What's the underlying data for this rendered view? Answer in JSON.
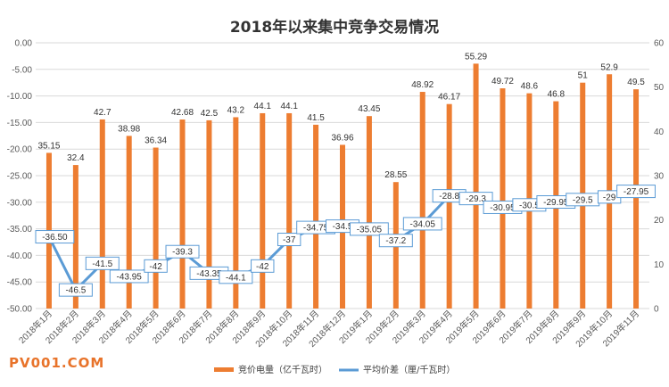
{
  "watermark_text": "PV001.COM",
  "chart_data": {
    "type": "bar+line",
    "title": "2018年以来集中竞争交易情况",
    "categories": [
      "2018年1月",
      "2018年2月",
      "2018年3月",
      "2018年4月",
      "2018年5月",
      "2018年6月",
      "2018年7月",
      "2018年8月",
      "2018年9月",
      "2018年10月",
      "2018年11月",
      "2018年12月",
      "2019年1月",
      "2019年2月",
      "2019年3月",
      "2019年4月",
      "2019年5月",
      "2019年6月",
      "2019年7月",
      "2019年8月",
      "2019年9月",
      "2019年10月",
      "2019年11月"
    ],
    "series": [
      {
        "name": "竞价电量（亿千瓦时）",
        "type": "bar",
        "axis": "right",
        "values": [
          35.15,
          32.4,
          42.7,
          38.98,
          36.34,
          42.68,
          42.5,
          43.2,
          44.1,
          44.1,
          41.5,
          36.96,
          43.45,
          28.55,
          48.92,
          46.17,
          55.29,
          49.72,
          48.6,
          46.8,
          51,
          52.9,
          49.5
        ],
        "labels": [
          "35.15",
          "32.4",
          "42.7",
          "38.98",
          "36.34",
          "42.68",
          "42.5",
          "43.2",
          "44.1",
          "44.1",
          "41.5",
          "36.96",
          "43.45",
          "28.55",
          "48.92",
          "46.17",
          "55.29",
          "49.72",
          "48.6",
          "46.8",
          "51",
          "52.9",
          "49.5"
        ],
        "color": "#ed7d31"
      },
      {
        "name": "平均价差（厘/千瓦时）",
        "type": "line",
        "axis": "left",
        "values": [
          -36.5,
          -46.5,
          -41.5,
          -43.95,
          -42,
          -39.3,
          -43.35,
          -44.1,
          -42,
          -37,
          -34.75,
          -34.5,
          -35.05,
          -37.2,
          -34.05,
          -28.8,
          -29.3,
          -30.95,
          -30.5,
          -29.95,
          -29.5,
          -29,
          -27.95
        ],
        "labels": [
          "-36.50",
          "-46.5",
          "-41.5",
          "-43.95",
          "-42",
          "-39.3",
          "-43.35",
          "-44.1",
          "-42",
          "-37",
          "-34.75",
          "-34.5",
          "-35.05",
          "-37.2",
          "-34.05",
          "-28.8",
          "-29.3",
          "-30.95",
          "-30.5",
          "-29.95",
          "-29.5",
          "-29",
          "-27.95"
        ],
        "color": "#5b9bd5"
      }
    ],
    "y_left": {
      "min": -50,
      "max": 0,
      "ticks": [
        "0.00",
        "-5.00",
        "-10.00",
        "-15.00",
        "-20.00",
        "-25.00",
        "-30.00",
        "-35.00",
        "-40.00",
        "-45.00",
        "-50.00"
      ]
    },
    "y_right": {
      "min": 0,
      "max": 60,
      "ticks": [
        "60",
        "50",
        "40",
        "30",
        "20",
        "10",
        "0"
      ]
    },
    "grid": true,
    "legend": "bottom"
  }
}
